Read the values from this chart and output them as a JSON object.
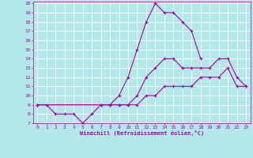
{
  "xlabel": "Windchill (Refroidissement éolien,°C)",
  "bg_color": "#b2e8e8",
  "grid_color": "#ffffff",
  "line_color": "#aa00aa",
  "xlim": [
    -0.5,
    23.5
  ],
  "ylim": [
    7,
    20.2
  ],
  "xticks": [
    0,
    1,
    2,
    3,
    4,
    5,
    6,
    7,
    8,
    9,
    10,
    11,
    12,
    13,
    14,
    15,
    16,
    17,
    18,
    19,
    20,
    21,
    22,
    23
  ],
  "yticks": [
    7,
    8,
    9,
    10,
    11,
    12,
    13,
    14,
    15,
    16,
    17,
    18,
    19,
    20
  ],
  "line1_x": [
    0,
    1,
    2,
    3,
    4,
    5,
    6,
    7,
    8,
    9,
    10,
    11,
    12,
    13,
    14,
    15,
    16,
    17,
    18
  ],
  "line1_y": [
    9,
    9,
    8,
    8,
    8,
    7,
    8,
    9,
    9,
    10,
    12,
    15,
    18,
    20,
    19,
    19,
    18,
    17,
    14
  ],
  "line2_x": [
    0,
    7,
    8,
    9,
    10,
    11,
    12,
    13,
    14,
    15,
    16,
    17,
    18,
    19,
    20,
    21,
    22,
    23
  ],
  "line2_y": [
    9,
    9,
    9,
    9,
    9,
    10,
    12,
    13,
    14,
    14,
    13,
    13,
    13,
    13,
    14,
    14,
    12,
    11
  ],
  "line3_x": [
    0,
    7,
    8,
    9,
    10,
    11,
    12,
    13,
    14,
    15,
    16,
    17,
    18,
    19,
    20,
    21,
    22,
    23
  ],
  "line3_y": [
    9,
    9,
    9,
    9,
    9,
    9,
    10,
    10,
    11,
    11,
    11,
    11,
    12,
    12,
    12,
    13,
    11,
    11
  ]
}
